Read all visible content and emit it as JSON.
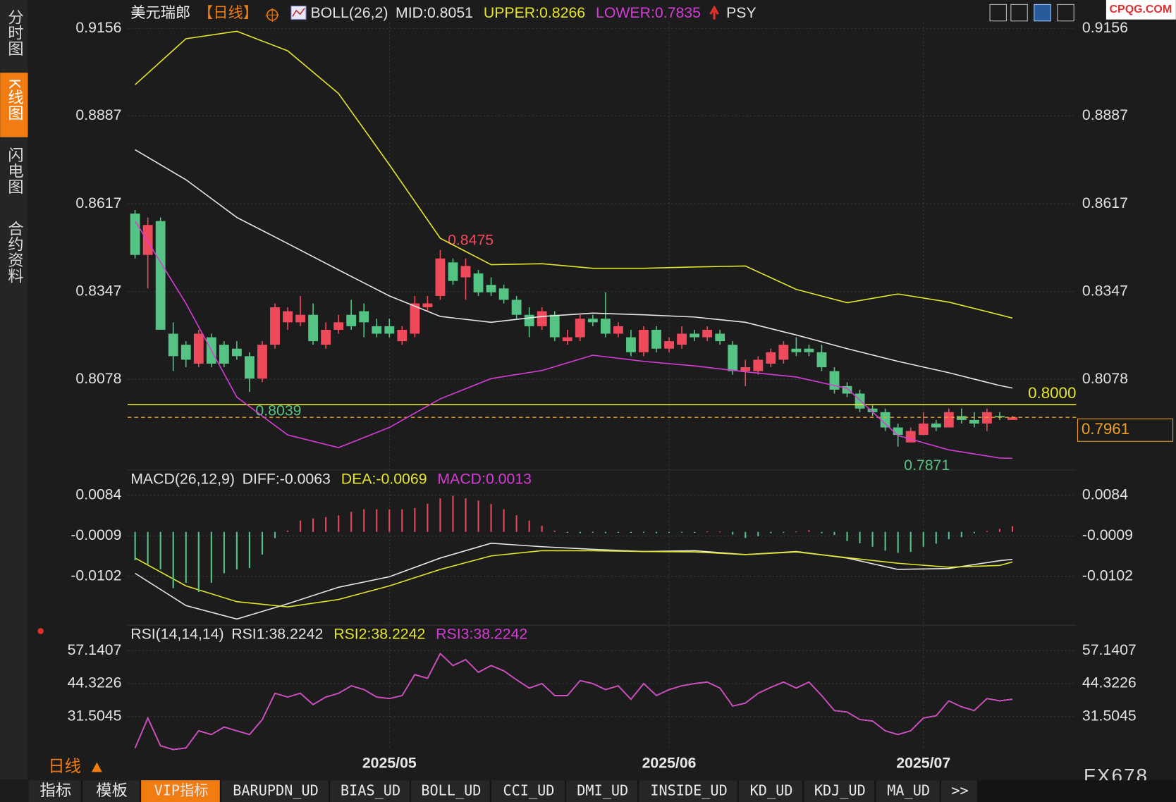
{
  "ui": {
    "sidebar": [
      "分时图",
      "K线图",
      "闪电图",
      "合约资料"
    ],
    "symbol": "美元瑞郎",
    "period": "【日线】",
    "indicator_extra": "PSY",
    "bottom_period": "日线",
    "tabs": [
      "指标",
      "模板",
      "VIP指标",
      "BARUPDN_UD",
      "BIAS_UD",
      "BOLL_UD",
      "CCI_UD",
      "DMI_UD",
      "INSIDE_UD",
      "KD_UD",
      "KDJ_UD",
      "MA_UD",
      ">>"
    ],
    "watermark": "FX678",
    "logo": "CPQG.COM"
  },
  "chart_data": [
    {
      "type": "candlestick",
      "title": "BOLL(26,2)",
      "up_color": "#ee4a5c",
      "down_color": "#55c383",
      "ylim": [
        0.7804,
        0.9174
      ],
      "yticks": [
        0.8078,
        0.8347,
        0.8617,
        0.8887,
        0.9156
      ],
      "xticks": [
        {
          "value": 20,
          "label": "2025/05"
        },
        {
          "value": 42,
          "label": "2025/06"
        },
        {
          "value": 62,
          "label": "2025/07"
        }
      ],
      "ohlc": [
        [
          0.8587,
          0.8598,
          0.8449,
          0.846
        ],
        [
          0.846,
          0.8575,
          0.8357,
          0.8552
        ],
        [
          0.8564,
          0.8575,
          0.823,
          0.823
        ],
        [
          0.8218,
          0.8253,
          0.8103,
          0.8149
        ],
        [
          0.8184,
          0.8195,
          0.8115,
          0.8138
        ],
        [
          0.8126,
          0.823,
          0.8115,
          0.8218
        ],
        [
          0.8207,
          0.8218,
          0.8115,
          0.8126
        ],
        [
          0.8184,
          0.8195,
          0.8115,
          0.8126
        ],
        [
          0.8172,
          0.8195,
          0.8138,
          0.8149
        ],
        [
          0.8149,
          0.8161,
          0.8039,
          0.808
        ],
        [
          0.808,
          0.8195,
          0.8069,
          0.8184
        ],
        [
          0.8184,
          0.8311,
          0.8172,
          0.8299
        ],
        [
          0.8253,
          0.8299,
          0.823,
          0.8287
        ],
        [
          0.8253,
          0.8334,
          0.8241,
          0.8276
        ],
        [
          0.8276,
          0.8311,
          0.8184,
          0.8195
        ],
        [
          0.8184,
          0.8253,
          0.8172,
          0.823
        ],
        [
          0.823,
          0.8276,
          0.8218,
          0.8253
        ],
        [
          0.8276,
          0.8322,
          0.823,
          0.8241
        ],
        [
          0.8287,
          0.8311,
          0.8207,
          0.8253
        ],
        [
          0.8241,
          0.8264,
          0.8207,
          0.8218
        ],
        [
          0.8241,
          0.8264,
          0.8207,
          0.8218
        ],
        [
          0.8195,
          0.8241,
          0.8184,
          0.823
        ],
        [
          0.8218,
          0.8334,
          0.8207,
          0.8311
        ],
        [
          0.8299,
          0.8334,
          0.8287,
          0.8311
        ],
        [
          0.8334,
          0.8475,
          0.8322,
          0.8449
        ],
        [
          0.8437,
          0.8449,
          0.8368,
          0.838
        ],
        [
          0.8391,
          0.8449,
          0.8322,
          0.8426
        ],
        [
          0.8403,
          0.8414,
          0.8334,
          0.8345
        ],
        [
          0.8368,
          0.8391,
          0.8334,
          0.8345
        ],
        [
          0.8357,
          0.8368,
          0.8311,
          0.8322
        ],
        [
          0.8322,
          0.8334,
          0.8264,
          0.8276
        ],
        [
          0.8276,
          0.8299,
          0.8207,
          0.8241
        ],
        [
          0.8241,
          0.8299,
          0.823,
          0.8287
        ],
        [
          0.8276,
          0.8287,
          0.8195,
          0.8207
        ],
        [
          0.8195,
          0.823,
          0.8184,
          0.8207
        ],
        [
          0.8207,
          0.8276,
          0.8195,
          0.8264
        ],
        [
          0.8264,
          0.8276,
          0.8241,
          0.8253
        ],
        [
          0.8264,
          0.8345,
          0.8207,
          0.8218
        ],
        [
          0.8218,
          0.8253,
          0.8207,
          0.8241
        ],
        [
          0.8207,
          0.823,
          0.8149,
          0.8161
        ],
        [
          0.8161,
          0.8241,
          0.8149,
          0.823
        ],
        [
          0.823,
          0.8241,
          0.8161,
          0.8172
        ],
        [
          0.8172,
          0.8207,
          0.8161,
          0.8195
        ],
        [
          0.8184,
          0.8241,
          0.8172,
          0.8218
        ],
        [
          0.8218,
          0.823,
          0.8195,
          0.8207
        ],
        [
          0.8207,
          0.8241,
          0.8195,
          0.823
        ],
        [
          0.8218,
          0.823,
          0.8184,
          0.8195
        ],
        [
          0.8184,
          0.8195,
          0.8092,
          0.8103
        ],
        [
          0.8103,
          0.8138,
          0.8057,
          0.8115
        ],
        [
          0.8103,
          0.8149,
          0.8092,
          0.8138
        ],
        [
          0.8126,
          0.8172,
          0.8115,
          0.8161
        ],
        [
          0.8138,
          0.8195,
          0.8126,
          0.8184
        ],
        [
          0.8172,
          0.8207,
          0.8149,
          0.8161
        ],
        [
          0.8172,
          0.8184,
          0.8149,
          0.8161
        ],
        [
          0.8161,
          0.8184,
          0.8103,
          0.8115
        ],
        [
          0.8103,
          0.8115,
          0.8034,
          0.8046
        ],
        [
          0.8057,
          0.8069,
          0.8023,
          0.8034
        ],
        [
          0.8034,
          0.8046,
          0.7977,
          0.7988
        ],
        [
          0.7988,
          0.8,
          0.7965,
          0.7977
        ],
        [
          0.7977,
          0.7988,
          0.7919,
          0.793
        ],
        [
          0.793,
          0.7942,
          0.7871,
          0.7907
        ],
        [
          0.7884,
          0.793,
          0.7884,
          0.7919
        ],
        [
          0.7907,
          0.7977,
          0.7907,
          0.7942
        ],
        [
          0.7942,
          0.7953,
          0.7919,
          0.793
        ],
        [
          0.793,
          0.7988,
          0.793,
          0.7977
        ],
        [
          0.7965,
          0.7988,
          0.7942,
          0.7953
        ],
        [
          0.7953,
          0.7977,
          0.793,
          0.7942
        ],
        [
          0.7942,
          0.7988,
          0.7919,
          0.7977
        ],
        [
          0.7965,
          0.7977,
          0.7953,
          0.7961
        ],
        [
          0.7953,
          0.7965,
          0.7953,
          0.7961
        ]
      ],
      "series": [
        {
          "name": "MID:0.8051",
          "color": "#e6e6e6",
          "x": [
            0,
            4,
            8,
            12,
            16,
            20,
            24,
            28,
            32,
            36,
            40,
            44,
            48,
            52,
            56,
            60,
            64,
            68,
            69
          ],
          "values": [
            0.8783,
            0.8691,
            0.8575,
            0.8495,
            0.8414,
            0.8334,
            0.8271,
            0.8253,
            0.8271,
            0.8281,
            0.8276,
            0.8269,
            0.8253,
            0.8214,
            0.8172,
            0.8133,
            0.8098,
            0.8059,
            0.8051
          ]
        },
        {
          "name": "UPPER:0.8266",
          "color": "#e5e52a",
          "x": [
            0,
            4,
            8,
            12,
            16,
            20,
            24,
            28,
            32,
            36,
            40,
            44,
            48,
            52,
            56,
            60,
            64,
            68,
            69
          ],
          "values": [
            0.8983,
            0.9124,
            0.9147,
            0.9087,
            0.8956,
            0.8737,
            0.8511,
            0.843,
            0.8433,
            0.8419,
            0.8419,
            0.8423,
            0.8426,
            0.8354,
            0.8313,
            0.834,
            0.8315,
            0.8276,
            0.8266
          ]
        },
        {
          "name": "LOWER:0.7835",
          "color": "#d63cd6",
          "x": [
            0,
            4,
            8,
            12,
            16,
            20,
            24,
            28,
            32,
            36,
            40,
            44,
            48,
            52,
            56,
            60,
            64,
            68,
            69
          ],
          "values": [
            0.8564,
            0.8311,
            0.8023,
            0.7907,
            0.7868,
            0.793,
            0.8018,
            0.808,
            0.8105,
            0.8152,
            0.8133,
            0.8119,
            0.8101,
            0.8085,
            0.805,
            0.7905,
            0.7861,
            0.7836,
            0.7835
          ]
        }
      ],
      "hline": {
        "value": 0.8,
        "label": "0.8000",
        "color": "#e5e52a"
      },
      "last_price": 0.7961,
      "last_price_color": "#f0a020",
      "annotations": [
        0.8475,
        0.8039,
        0.7871
      ]
    },
    {
      "type": "macd",
      "title": "MACD(26,12,9)",
      "up_color": "#e8475a",
      "down_color": "#52c38a",
      "ylim": [
        -0.0207,
        0.0137
      ],
      "yticks": [
        -0.0102,
        -0.0009,
        0.0084
      ],
      "series": [
        {
          "name": "DIFF:-0.0063",
          "color": "#e6e6e6",
          "x": [
            0,
            4,
            8,
            12,
            16,
            20,
            24,
            28,
            32,
            36,
            40,
            44,
            48,
            52,
            56,
            60,
            64,
            68,
            69
          ],
          "values": [
            -0.0095,
            -0.0169,
            -0.02,
            -0.0165,
            -0.0127,
            -0.0103,
            -0.006,
            -0.0026,
            -0.0034,
            -0.004,
            -0.0045,
            -0.0043,
            -0.0052,
            -0.0045,
            -0.006,
            -0.0086,
            -0.0084,
            -0.0066,
            -0.0063
          ]
        },
        {
          "name": "DEA:-0.0069",
          "color": "#e5e52a",
          "x": [
            0,
            4,
            8,
            12,
            16,
            20,
            24,
            28,
            32,
            36,
            40,
            44,
            48,
            52,
            56,
            60,
            64,
            68,
            69
          ],
          "values": [
            -0.006,
            -0.0124,
            -0.016,
            -0.0172,
            -0.0155,
            -0.0124,
            -0.0086,
            -0.0055,
            -0.0043,
            -0.0043,
            -0.0045,
            -0.0046,
            -0.0052,
            -0.0046,
            -0.0059,
            -0.0072,
            -0.0081,
            -0.0077,
            -0.0069
          ]
        },
        {
          "name": "MACD:0.0013",
          "color": "#d63cd6",
          "kind": "bar",
          "values": [
            -0.0065,
            -0.0074,
            -0.0086,
            -0.0129,
            -0.0117,
            -0.0138,
            -0.0117,
            -0.0095,
            -0.0086,
            -0.0083,
            -0.0052,
            -0.0014,
            0.0003,
            0.0026,
            0.0031,
            0.0034,
            0.0038,
            0.0046,
            0.0052,
            0.0052,
            0.0052,
            0.0052,
            0.0055,
            0.0065,
            0.0077,
            0.0083,
            0.0077,
            0.0072,
            0.0064,
            0.0052,
            0.0038,
            0.0026,
            0.0014,
            0.0003,
            -0.0002,
            -0.0003,
            -0.0002,
            -0.0003,
            -0.0002,
            -0.0002,
            -0.0002,
            -0.0003,
            -0.0002,
            -0.0002,
            -0.0002,
            0.0001,
            0.0001,
            -0.0006,
            -0.0014,
            -0.001,
            -0.0003,
            -0.0002,
            0.0001,
            0.0004,
            -0.0003,
            -0.0007,
            -0.0021,
            -0.0026,
            -0.0034,
            -0.0043,
            -0.0048,
            -0.0046,
            -0.0034,
            -0.0027,
            -0.0017,
            -0.0012,
            -0.0003,
            0.0002,
            0.0007,
            0.0013
          ]
        }
      ]
    },
    {
      "type": "line",
      "title": "RSI(14,14,14)",
      "ylim": [
        18.69,
        65.3
      ],
      "yticks": [
        31.5045,
        44.3226,
        57.1407
      ],
      "series": [
        {
          "name": "RSI1:38.2242",
          "color": "#e6e6e6",
          "values": [
            19.27,
            30.92,
            20.14,
            18.69,
            19.27,
            25.97,
            24.52,
            27.43,
            25.97,
            24.52,
            30.34,
            40.53,
            39.08,
            40.53,
            36.17,
            39.08,
            40.53,
            43.45,
            41.99,
            39.08,
            38.5,
            39.66,
            47.82,
            46.36,
            55.97,
            51.31,
            53.65,
            48.69,
            51.31,
            49.27,
            45.78,
            42.57,
            44.32,
            39.66,
            39.66,
            45.49,
            44.32,
            41.99,
            43.45,
            38.21,
            44.32,
            39.66,
            41.99,
            43.45,
            44.32,
            44.91,
            42.57,
            35.58,
            36.75,
            40.53,
            42.87,
            44.91,
            42.57,
            44.91,
            39.66,
            33.84,
            33.25,
            30.34,
            29.76,
            25.97,
            24.52,
            25.97,
            30.92,
            31.8,
            37.62,
            35.29,
            33.84,
            38.5,
            37.62,
            38.2242
          ]
        },
        {
          "name": "RSI2:38.2242",
          "color": "#e5e52a",
          "values": [
            19.27,
            30.92,
            20.14,
            18.69,
            19.27,
            25.97,
            24.52,
            27.43,
            25.97,
            24.52,
            30.34,
            40.53,
            39.08,
            40.53,
            36.17,
            39.08,
            40.53,
            43.45,
            41.99,
            39.08,
            38.5,
            39.66,
            47.82,
            46.36,
            55.97,
            51.31,
            53.65,
            48.69,
            51.31,
            49.27,
            45.78,
            42.57,
            44.32,
            39.66,
            39.66,
            45.49,
            44.32,
            41.99,
            43.45,
            38.21,
            44.32,
            39.66,
            41.99,
            43.45,
            44.32,
            44.91,
            42.57,
            35.58,
            36.75,
            40.53,
            42.87,
            44.91,
            42.57,
            44.91,
            39.66,
            33.84,
            33.25,
            30.34,
            29.76,
            25.97,
            24.52,
            25.97,
            30.92,
            31.8,
            37.62,
            35.29,
            33.84,
            38.5,
            37.62,
            38.2242
          ]
        },
        {
          "name": "RSI3:38.2242",
          "color": "#d63cd6",
          "values": [
            19.27,
            30.92,
            20.14,
            18.69,
            19.27,
            25.97,
            24.52,
            27.43,
            25.97,
            24.52,
            30.34,
            40.53,
            39.08,
            40.53,
            36.17,
            39.08,
            40.53,
            43.45,
            41.99,
            39.08,
            38.5,
            39.66,
            47.82,
            46.36,
            55.97,
            51.31,
            53.65,
            48.69,
            51.31,
            49.27,
            45.78,
            42.57,
            44.32,
            39.66,
            39.66,
            45.49,
            44.32,
            41.99,
            43.45,
            38.21,
            44.32,
            39.66,
            41.99,
            43.45,
            44.32,
            44.91,
            42.57,
            35.58,
            36.75,
            40.53,
            42.87,
            44.91,
            42.57,
            44.91,
            39.66,
            33.84,
            33.25,
            30.34,
            29.76,
            25.97,
            24.52,
            25.97,
            30.92,
            31.8,
            37.62,
            35.29,
            33.84,
            38.5,
            37.62,
            38.2242
          ]
        }
      ]
    }
  ]
}
